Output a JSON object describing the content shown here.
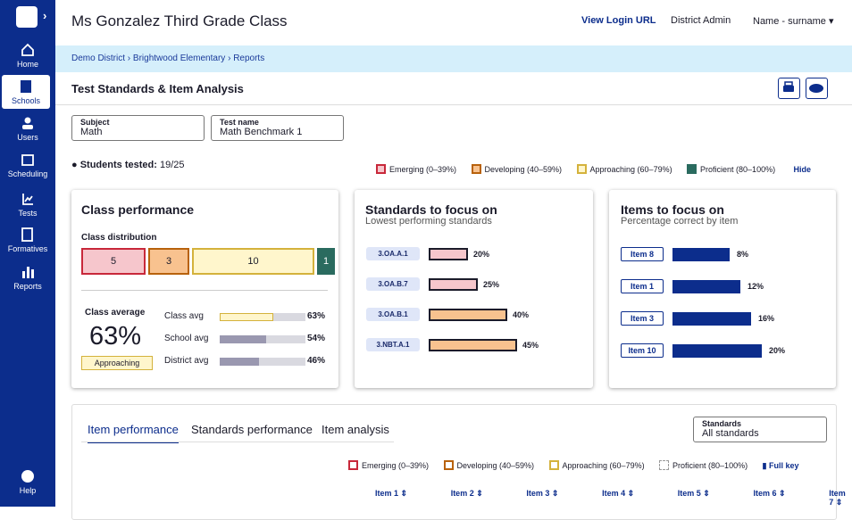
{
  "header": {
    "title": "Ms Gonzalez Third Grade Class",
    "view_login": "View Login URL",
    "role": "District Admin",
    "user": "Name - surname"
  },
  "sidebar": {
    "items": [
      "Home",
      "Schools",
      "Users",
      "Scheduling",
      "Tests",
      "Formatives",
      "Reports"
    ],
    "help": "Help"
  },
  "breadcrumb": [
    "Demo District",
    "Brightwood Elementary",
    "Reports"
  ],
  "page": {
    "title": "Test Standards & Item Analysis"
  },
  "filters": [
    {
      "label": "Subject",
      "value": "Math"
    },
    {
      "label": "Test name",
      "value": "Math Benchmark 1"
    }
  ],
  "students_tested": {
    "label": "Students tested:",
    "value": "19/25"
  },
  "legend": {
    "items": [
      "Emerging (0–39%)",
      "Developing  (40–59%)",
      "Approaching (60–79%)",
      "Proficient (80–100%)"
    ],
    "hide": "Hide"
  },
  "class_performance": {
    "title": "Class performance",
    "distribution_label": "Class distribution",
    "distribution": [
      5,
      3,
      10,
      1
    ],
    "average_label": "Class average",
    "average": "63%",
    "band": "Approaching",
    "comparisons": [
      {
        "label": "Class avg",
        "value": 63,
        "value_label": "63%"
      },
      {
        "label": "School avg",
        "value": 54,
        "value_label": "54%"
      },
      {
        "label": "District avg",
        "value": 46,
        "value_label": "46%"
      }
    ]
  },
  "standards": {
    "title": "Standards to focus on",
    "subtitle": "Lowest performing standards",
    "rows": [
      {
        "code": "3.OA.A.1",
        "value": 20,
        "value_label": "20%",
        "level": "emerging"
      },
      {
        "code": "3.OA.B.7",
        "value": 25,
        "value_label": "25%",
        "level": "emerging"
      },
      {
        "code": "3.OA.B.1",
        "value": 40,
        "value_label": "40%",
        "level": "developing"
      },
      {
        "code": "3.NBT.A.1",
        "value": 45,
        "value_label": "45%",
        "level": "developing"
      }
    ]
  },
  "items": {
    "title": "Items to focus on",
    "subtitle": "Percentage correct by item",
    "rows": [
      {
        "item": "Item 8",
        "value": 8,
        "value_label": "8%"
      },
      {
        "item": "Item 1",
        "value": 12,
        "value_label": "12%"
      },
      {
        "item": "Item 3",
        "value": 16,
        "value_label": "16%"
      },
      {
        "item": "Item 10",
        "value": 20,
        "value_label": "20%"
      }
    ]
  },
  "bottom": {
    "tabs": [
      "Item performance",
      "Standards performance",
      "Item analysis"
    ],
    "filter": {
      "label": "Standards",
      "value": "All standards"
    },
    "legend": [
      "Emerging (0–39%)",
      "Developing  (40–59%)",
      "Approaching (60–79%)",
      "Proficient (80–100%)"
    ],
    "full_key": "Full key",
    "columns": [
      "Item 1",
      "Item 2",
      "Item 3",
      "Item 4",
      "Item 5",
      "Item 6",
      "Item 7"
    ]
  }
}
